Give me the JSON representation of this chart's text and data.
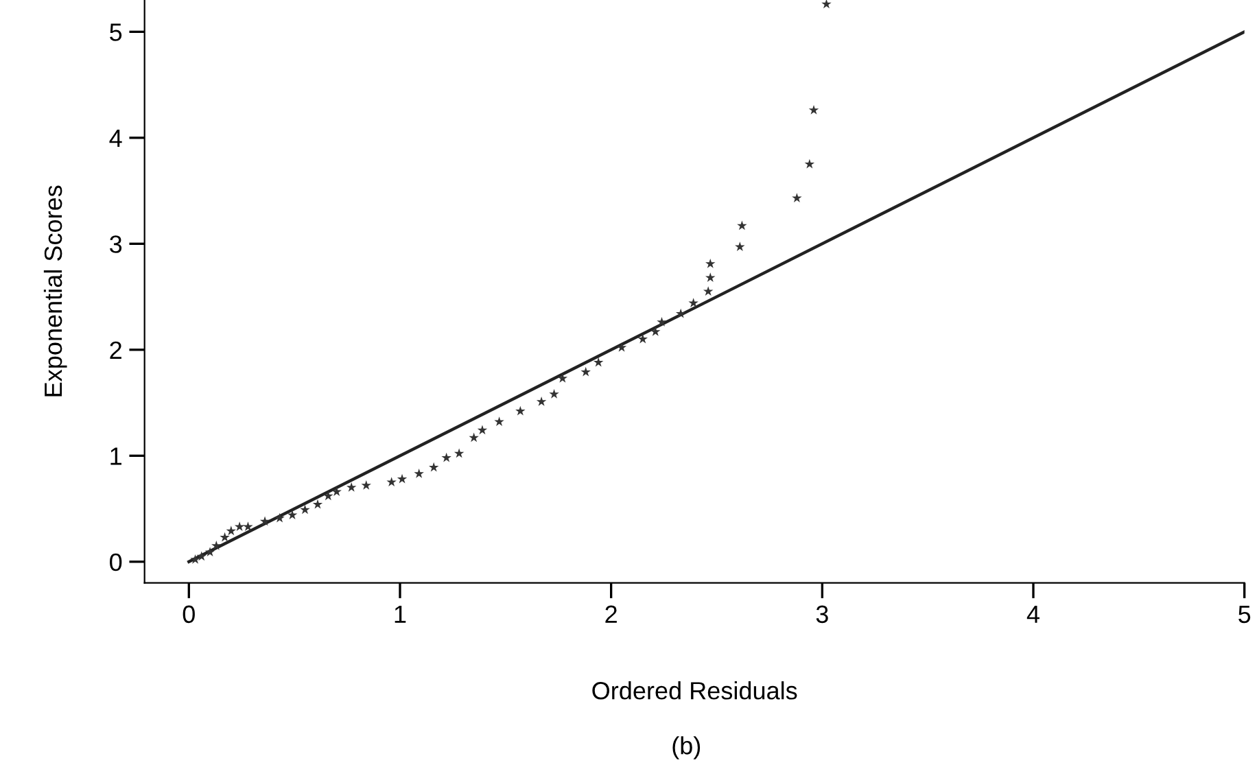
{
  "chart_data": {
    "type": "scatter",
    "xlabel": "Ordered Residuals",
    "ylabel": "Exponential Scores",
    "annotations": [
      "(b)"
    ],
    "xlim": [
      -0.21,
      5
    ],
    "ylim": [
      -0.2,
      5.3
    ],
    "xticks": [
      0,
      1,
      2,
      3,
      4,
      5
    ],
    "yticks": [
      0,
      1,
      2,
      3,
      4,
      5
    ],
    "grid": false,
    "legend": false,
    "series": [
      {
        "marker": "star",
        "color": "#333333",
        "x": [
          0.03,
          0.06,
          0.1,
          0.13,
          0.17,
          0.2,
          0.24,
          0.28,
          0.36,
          0.43,
          0.49,
          0.55,
          0.61,
          0.66,
          0.7,
          0.77,
          0.84,
          0.96,
          1.01,
          1.09,
          1.16,
          1.22,
          1.28,
          1.35,
          1.39,
          1.47,
          1.57,
          1.67,
          1.73,
          1.77,
          1.88,
          1.94,
          2.05,
          2.15,
          2.21,
          2.24,
          2.33,
          2.39,
          2.46,
          2.47,
          2.47,
          2.61,
          2.62,
          2.88,
          2.94,
          2.96,
          3.02
        ],
        "values": [
          0.02,
          0.05,
          0.09,
          0.15,
          0.23,
          0.29,
          0.33,
          0.33,
          0.38,
          0.41,
          0.44,
          0.49,
          0.54,
          0.62,
          0.66,
          0.7,
          0.72,
          0.75,
          0.78,
          0.83,
          0.89,
          0.98,
          1.02,
          1.17,
          1.24,
          1.32,
          1.42,
          1.51,
          1.58,
          1.73,
          1.79,
          1.88,
          2.02,
          2.1,
          2.17,
          2.26,
          2.34,
          2.44,
          2.55,
          2.68,
          2.81,
          2.97,
          3.17,
          3.43,
          3.75,
          4.26,
          5.26
        ]
      },
      {
        "type": "line",
        "color": "#222222",
        "line_style": "solid",
        "marker": "none",
        "x": [
          0,
          5
        ],
        "values": [
          0,
          5
        ]
      }
    ]
  }
}
